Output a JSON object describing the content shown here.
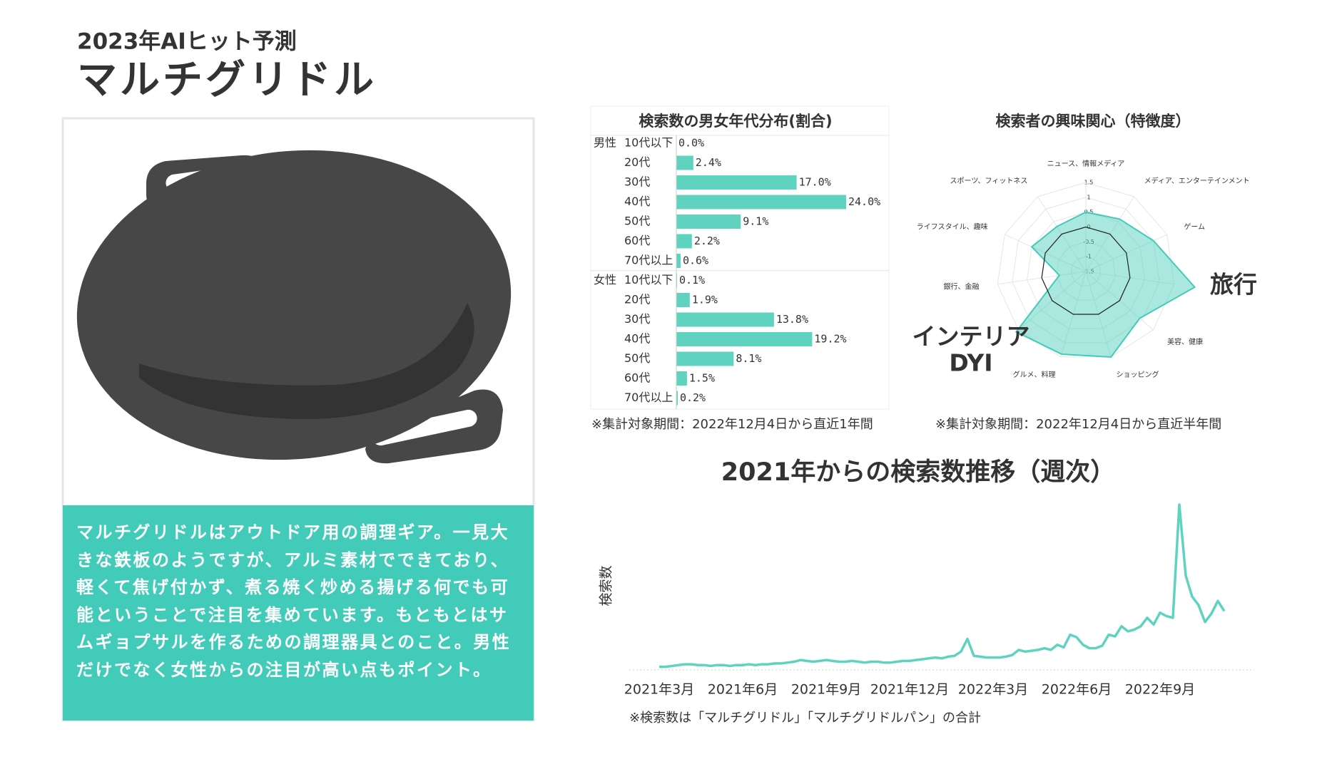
{
  "header": {
    "kicker": "2023年AIヒット予測",
    "title": "マルチグリドル"
  },
  "description": "マルチグリドルはアウトドア用の調理ギア。一見大きな鉄板のようですが、アルミ素材でできており、軽くて焦げ付かず、煮る焼く炒める揚げる何でも可能ということで注目を集めています。もともとはサムギョプサルを作るための調理器具とのこと。男性だけでなく女性からの注目が高い点もポイント。",
  "chart_data": [
    {
      "type": "hbar",
      "title": "検索数の男女年代分布(割合)",
      "categories": [
        "10代以下",
        "20代",
        "30代",
        "40代",
        "50代",
        "60代",
        "70代以上"
      ],
      "series": [
        {
          "name": "男性",
          "color": "#5fd3c0",
          "values": [
            0.0,
            2.4,
            17.0,
            24.0,
            9.1,
            2.2,
            0.6
          ],
          "value_labels": [
            "0.0%",
            "2.4%",
            "17.0%",
            "24.0%",
            "9.1%",
            "2.2%",
            "0.6%"
          ]
        },
        {
          "name": "女性",
          "color": "#5fd3c0",
          "values": [
            0.1,
            1.9,
            13.8,
            19.2,
            8.1,
            1.5,
            0.2
          ],
          "value_labels": [
            "0.1%",
            "1.9%",
            "13.8%",
            "19.2%",
            "8.1%",
            "1.5%",
            "0.2%"
          ]
        }
      ],
      "note": "※集計対象期間：2022年12月4日から直近1年間"
    },
    {
      "type": "radar",
      "title": "検索者の興味関心（特徴度）",
      "categories": [
        "ニュース、情報メディア",
        "メディア、エンターテインメント",
        "ゲーム",
        null,
        "美容、健康",
        "ショッピング",
        "グルメ、料理",
        null,
        "銀行、金融",
        "ライフスタイル、趣味",
        "スポーツ、フィットネス"
      ],
      "values": [
        0.5,
        0.6,
        1.0,
        2.2,
        0.9,
        1.5,
        1.4,
        1.6,
        -0.6,
        0.5,
        0.3
      ],
      "color": "#43cbb9",
      "rlim": [
        -1.5,
        1.5
      ],
      "rticks": [
        1.5,
        1,
        0.5,
        0,
        -0.5,
        -1,
        -1.5
      ],
      "annotations": [
        "旅行",
        "インテリア",
        "DYI"
      ],
      "note": "※集計対象期間：2022年12月4日から直近半年間"
    },
    {
      "type": "line",
      "title": "2021年からの検索数推移（週次）",
      "y_label": "検索数",
      "color": "#5fd3c0",
      "categories": [
        "2021年3月",
        null,
        null,
        null,
        null,
        null,
        null,
        null,
        null,
        null,
        null,
        null,
        null,
        "2021年6月",
        null,
        null,
        null,
        null,
        null,
        null,
        null,
        null,
        null,
        null,
        null,
        null,
        "2021年9月",
        null,
        null,
        null,
        null,
        null,
        null,
        null,
        null,
        null,
        null,
        null,
        null,
        "2021年12月",
        null,
        null,
        null,
        null,
        null,
        null,
        null,
        null,
        null,
        null,
        null,
        null,
        "2022年3月",
        null,
        null,
        null,
        null,
        null,
        null,
        null,
        null,
        null,
        null,
        null,
        null,
        "2022年6月",
        null,
        null,
        null,
        null,
        null,
        null,
        null,
        null,
        null,
        null,
        null,
        null,
        "2022年9月",
        null,
        null,
        null,
        null,
        null,
        null,
        null,
        null,
        null,
        null
      ],
      "values": [
        2,
        2,
        3,
        4,
        5,
        5,
        4,
        4,
        3,
        4,
        4,
        3,
        4,
        4,
        5,
        4,
        5,
        5,
        6,
        6,
        7,
        8,
        10,
        9,
        8,
        9,
        10,
        9,
        8,
        8,
        9,
        8,
        7,
        8,
        8,
        7,
        7,
        8,
        9,
        9,
        10,
        11,
        12,
        13,
        12,
        14,
        15,
        20,
        35,
        15,
        14,
        13,
        13,
        13,
        14,
        16,
        22,
        20,
        21,
        22,
        24,
        22,
        28,
        25,
        40,
        37,
        28,
        24,
        24,
        27,
        40,
        38,
        50,
        44,
        46,
        50,
        60,
        52,
        66,
        62,
        60,
        194,
        110,
        85,
        75,
        55,
        65,
        80,
        68
      ],
      "note": "※検索数は「マルチグリドル」「マルチグリドルパン」の合計"
    }
  ]
}
